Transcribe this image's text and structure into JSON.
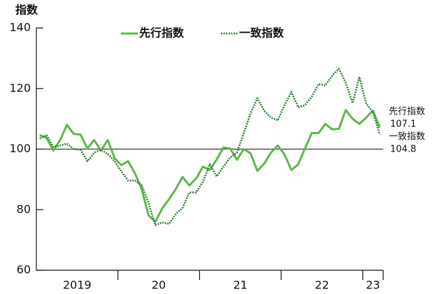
{
  "chart_data": {
    "type": "line",
    "y_label": "指数",
    "ylim": [
      60,
      140
    ],
    "yticks": [
      60,
      80,
      100,
      120,
      140
    ],
    "reference_line": 100,
    "year_labels": [
      "2019",
      "20",
      "21",
      "22",
      "23"
    ],
    "year_months": [
      12,
      12,
      12,
      12,
      3
    ],
    "series": [
      {
        "name": "先行指数",
        "color": "#5cb848",
        "style": "solid",
        "values": [
          104.6,
          103.7,
          99.5,
          103,
          108,
          105,
          104.8,
          100.2,
          103,
          99.5,
          103,
          97,
          94.7,
          96,
          92,
          86.8,
          78.1,
          76,
          80.4,
          83.4,
          86.8,
          90.8,
          88,
          90.3,
          94.2,
          93.1,
          96.5,
          100.5,
          100.2,
          96.5,
          100,
          98.6,
          92.8,
          95.2,
          98.8,
          101.2,
          98.2,
          93.1,
          94.9,
          100.2,
          105.3,
          105.3,
          108.3,
          106.5,
          106.7,
          112.9,
          110,
          108.3,
          110.4,
          112.7,
          107.1
        ]
      },
      {
        "name": "一致指数",
        "color": "#2e7d32",
        "style": "dotted",
        "values": [
          103.5,
          104.6,
          100.7,
          101.2,
          101.8,
          100,
          99.8,
          96,
          98.8,
          99.8,
          98.4,
          96,
          92.6,
          89.6,
          89.6,
          88,
          82.2,
          74.9,
          75.8,
          75.3,
          78.5,
          80.6,
          85.7,
          85.7,
          89.2,
          95,
          91,
          94.2,
          97.2,
          98.8,
          105.3,
          111.8,
          116.8,
          112.7,
          110.4,
          109.5,
          114.5,
          118.9,
          113.8,
          114.5,
          117.3,
          121.5,
          121,
          124.2,
          126.5,
          121.9,
          115.2,
          123.8,
          115,
          112.2,
          104.8
        ]
      }
    ]
  }
}
